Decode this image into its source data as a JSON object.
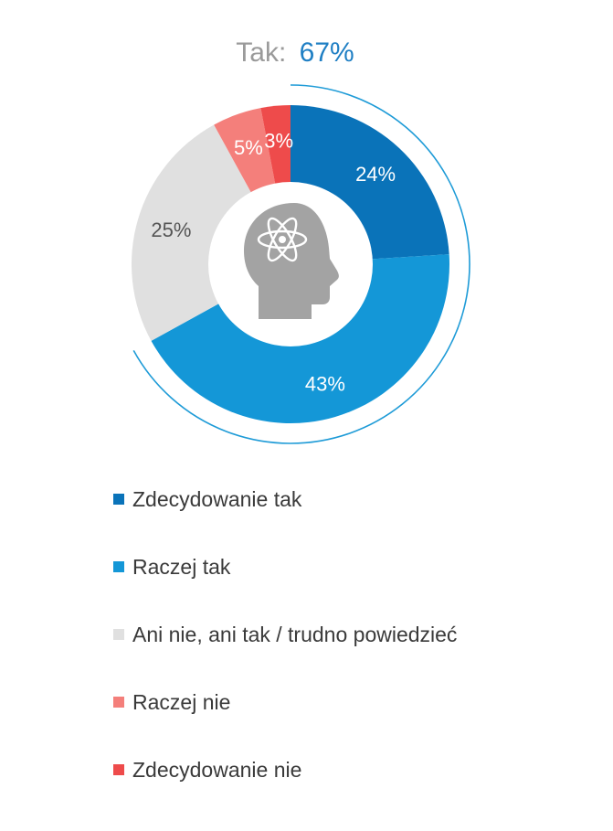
{
  "headline": {
    "prefix": "Tak:",
    "value": "67%",
    "prefix_color": "#9a9a9a",
    "value_color": "#1f7fc4"
  },
  "center_icon": "head-with-atom-icon",
  "colors": {
    "Zdecydowanie tak": "#0a73b9",
    "Raczej tak": "#1497d7",
    "Ani nie, ani tak / trudno powiedzieć": "#e0e0e0",
    "Raczej nie": "#f47f7b",
    "Zdecydowanie nie": "#ee4b4b",
    "outer_arc": "#1e9bd7",
    "icon": "#a3a3a3"
  },
  "chart_data": {
    "type": "pie",
    "variant": "donut",
    "categories": [
      "Zdecydowanie tak",
      "Raczej tak",
      "Ani nie, ani tak / trudno powiedzieć",
      "Raczej nie",
      "Zdecydowanie nie"
    ],
    "values": [
      24,
      43,
      25,
      5,
      3
    ],
    "labels": [
      "24%",
      "43%",
      "25%",
      "5%",
      "3%"
    ],
    "label_colors": [
      "#ffffff",
      "#ffffff",
      "#555555",
      "#ffffff",
      "#ffffff"
    ],
    "highlight_arc": {
      "covers": [
        "Zdecydowanie tak",
        "Raczej tak"
      ],
      "label": "Tak: 67%"
    },
    "legend_position": "bottom"
  }
}
